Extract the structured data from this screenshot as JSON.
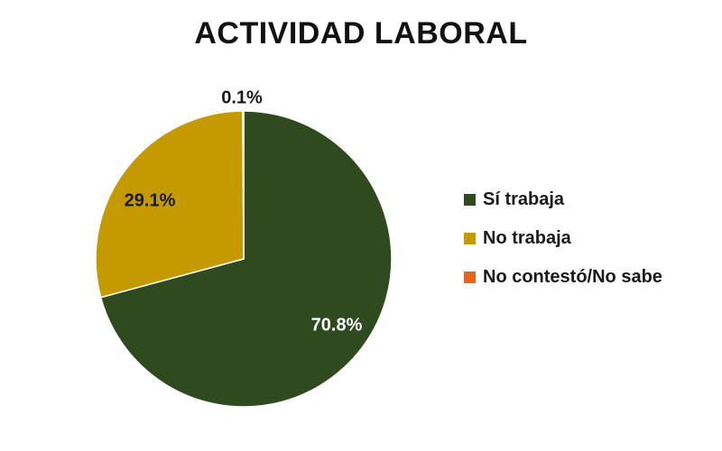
{
  "chart_data": {
    "type": "pie",
    "title": "ACTIVIDAD LABORAL",
    "legend_position": "right",
    "slices": [
      {
        "label": "Sí trabaja",
        "value": 70.8,
        "value_label": "70.8%",
        "color": "#2e4a1e",
        "label_color": "#ffffff"
      },
      {
        "label": "No trabaja",
        "value": 29.1,
        "value_label": "29.1%",
        "color": "#c49a00",
        "label_color": "#1a1a1a"
      },
      {
        "label": "No contestó/No sabe",
        "value": 0.1,
        "value_label": "0.1%",
        "color": "#e8621a",
        "label_color": "#1a1a1a"
      }
    ]
  }
}
